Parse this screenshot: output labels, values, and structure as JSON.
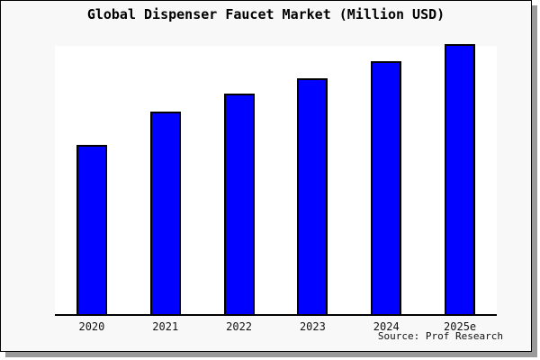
{
  "title": "Global Dispenser Faucet Market (Million USD)",
  "source": "Source: Prof Research",
  "colors": {
    "bar_fill": "#0000ff",
    "bar_border": "#000000",
    "frame_background": "#f8f8f8",
    "plot_background": "#ffffff",
    "axis": "#000000",
    "frame_border": "#000000",
    "drop_shadow": "#9a9a9a",
    "text": "#111111"
  },
  "chart_data": {
    "type": "bar",
    "title": "Global Dispenser Faucet Market (Million USD)",
    "categories": [
      "2020",
      "2021",
      "2022",
      "2023",
      "2024",
      "2025e"
    ],
    "values": [
      62.7,
      75.0,
      81.7,
      87.3,
      93.7,
      100.0
    ],
    "xlabel": "",
    "ylabel": "",
    "ylim": [
      0,
      100
    ],
    "y_axis_visible": false,
    "grid": false,
    "legend": false,
    "source_note": "Source: Prof Research"
  }
}
